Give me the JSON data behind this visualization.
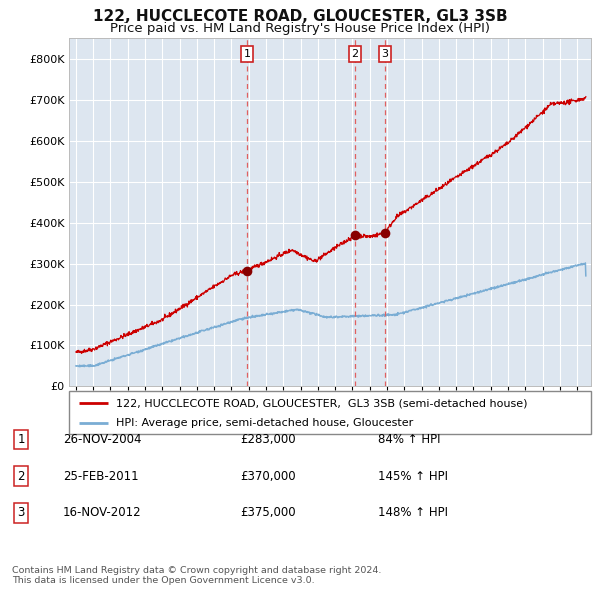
{
  "title": "122, HUCCLECOTE ROAD, GLOUCESTER, GL3 3SB",
  "subtitle": "Price paid vs. HM Land Registry's House Price Index (HPI)",
  "title_fontsize": 11,
  "subtitle_fontsize": 9.5,
  "bg_color": "#dde6f0",
  "grid_color": "#ffffff",
  "red_line_color": "#cc0000",
  "blue_line_color": "#7aadd4",
  "sale_marker_color": "#880000",
  "sale_marker_size": 7,
  "dashed_line_color": "#e06060",
  "sales": [
    {
      "date_num": 2004.9,
      "price": 283000,
      "label": "1"
    },
    {
      "date_num": 2011.15,
      "price": 370000,
      "label": "2"
    },
    {
      "date_num": 2012.88,
      "price": 375000,
      "label": "3"
    }
  ],
  "table_rows": [
    {
      "num": "1",
      "date": "26-NOV-2004",
      "price": "£283,000",
      "pct": "84% ↑ HPI"
    },
    {
      "num": "2",
      "date": "25-FEB-2011",
      "price": "£370,000",
      "pct": "145% ↑ HPI"
    },
    {
      "num": "3",
      "date": "16-NOV-2012",
      "price": "£375,000",
      "pct": "148% ↑ HPI"
    }
  ],
  "legend_entries": [
    "122, HUCCLECOTE ROAD, GLOUCESTER,  GL3 3SB (semi-detached house)",
    "HPI: Average price, semi-detached house, Gloucester"
  ],
  "footer": "Contains HM Land Registry data © Crown copyright and database right 2024.\nThis data is licensed under the Open Government Licence v3.0.",
  "ylim": [
    0,
    850000
  ],
  "yticks": [
    0,
    100000,
    200000,
    300000,
    400000,
    500000,
    600000,
    700000,
    800000
  ],
  "xlim_start": 1994.6,
  "xlim_end": 2024.8
}
